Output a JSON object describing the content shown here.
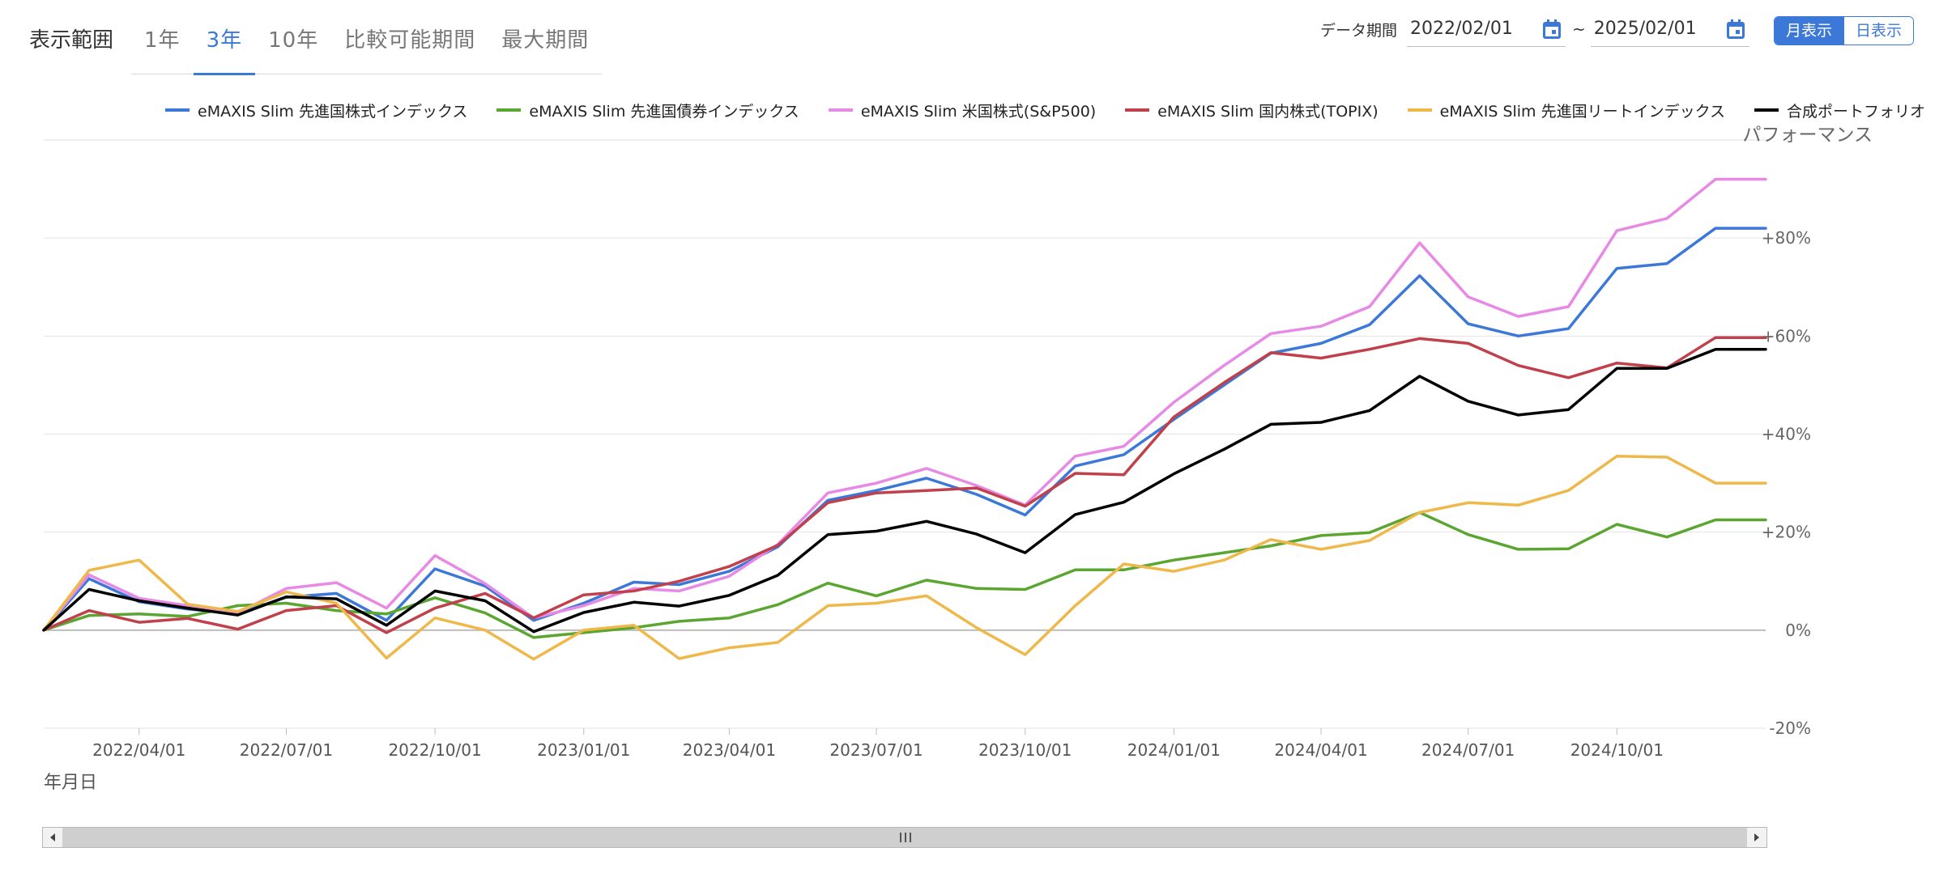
{
  "range": {
    "label": "表示範囲",
    "tabs": [
      {
        "label": "1年",
        "active": false
      },
      {
        "label": "3年",
        "active": true
      },
      {
        "label": "10年",
        "active": false
      },
      {
        "label": "比較可能期間",
        "active": false
      },
      {
        "label": "最大期間",
        "active": false
      }
    ]
  },
  "period": {
    "label": "データ期間",
    "start": "2022/02/01",
    "separator": "~",
    "end": "2025/02/01",
    "icon": "calendar-icon"
  },
  "view_toggle": {
    "monthly": "月表示",
    "daily": "日表示",
    "selected": "monthly"
  },
  "colors": {
    "accent": "#3c78d8"
  },
  "chart_data": {
    "type": "line",
    "ylabel": "パフォーマンス",
    "xlabel": "年月日",
    "ylim": [
      -20,
      100
    ],
    "y_ticks": [
      {
        "value": 80,
        "label": "+80%"
      },
      {
        "value": 60,
        "label": "+60%"
      },
      {
        "value": 40,
        "label": "+40%"
      },
      {
        "value": 20,
        "label": "+20%"
      },
      {
        "value": 0,
        "label": "0%"
      },
      {
        "value": -20,
        "label": "-20%"
      }
    ],
    "x": [
      "2022/02/01",
      "2022/03/01",
      "2022/04/01",
      "2022/05/01",
      "2022/06/01",
      "2022/07/01",
      "2022/08/01",
      "2022/09/01",
      "2022/10/01",
      "2022/11/01",
      "2022/12/01",
      "2023/01/01",
      "2023/02/01",
      "2023/03/01",
      "2023/04/01",
      "2023/05/01",
      "2023/06/01",
      "2023/07/01",
      "2023/08/01",
      "2023/09/01",
      "2023/10/01",
      "2023/11/01",
      "2023/12/01",
      "2024/01/01",
      "2024/02/01",
      "2024/03/01",
      "2024/04/01",
      "2024/05/01",
      "2024/06/01",
      "2024/07/01",
      "2024/08/01",
      "2024/09/01",
      "2024/10/01",
      "2024/11/01",
      "2024/12/01",
      "2025/01/01"
    ],
    "x_tick_labels": [
      "2022/04/01",
      "2022/07/01",
      "2022/10/01",
      "2023/01/01",
      "2023/04/01",
      "2023/07/01",
      "2023/10/01",
      "2024/01/01",
      "2024/04/01",
      "2024/07/01",
      "2024/10/01"
    ],
    "zero_line": true,
    "legend_position": "top",
    "series": [
      {
        "name": "eMAXIS Slim 先進国株式インデックス",
        "color": "#3c78d8",
        "values": [
          0,
          10.5,
          5.8,
          4.3,
          3.4,
          6.7,
          7.5,
          2.0,
          12.5,
          9.0,
          2.0,
          5.5,
          9.8,
          9.3,
          12.0,
          17.0,
          26.5,
          28.5,
          31.0,
          27.7,
          23.5,
          33.5,
          35.8,
          43.0,
          50.0,
          56.5,
          58.5,
          62.3,
          72.3,
          62.5,
          60.0,
          61.5,
          73.8,
          74.8,
          82.0,
          82.0
        ]
      },
      {
        "name": "eMAXIS Slim 先進国債券インデックス",
        "color": "#5ba531",
        "values": [
          0,
          3.0,
          3.3,
          2.8,
          5.0,
          5.5,
          4.0,
          3.3,
          6.6,
          3.5,
          -1.5,
          -0.5,
          0.5,
          1.8,
          2.5,
          5.2,
          9.6,
          7.0,
          10.2,
          8.5,
          8.3,
          12.3,
          12.3,
          14.3,
          15.8,
          17.2,
          19.3,
          19.9,
          24.0,
          19.5,
          16.5,
          16.6,
          21.6,
          19.0,
          22.5,
          22.5
        ]
      },
      {
        "name": "eMAXIS Slim 米国株式(S&P500)",
        "color": "#e78ae6",
        "values": [
          0,
          11.3,
          6.5,
          5.0,
          3.5,
          8.5,
          9.7,
          4.5,
          15.2,
          9.5,
          2.5,
          5.0,
          8.5,
          8.0,
          11.0,
          17.5,
          28.0,
          30.0,
          33.0,
          29.5,
          25.5,
          35.5,
          37.5,
          46.5,
          54.0,
          60.5,
          62.0,
          66.0,
          79.0,
          68.0,
          64.0,
          66.0,
          81.5,
          84.0,
          92.0,
          92.0
        ]
      },
      {
        "name": "eMAXIS Slim 国内株式(TOPIX)",
        "color": "#c0404c",
        "values": [
          0,
          4.0,
          1.6,
          2.4,
          0.2,
          4.0,
          5.0,
          -0.5,
          4.5,
          7.5,
          2.5,
          7.2,
          8.0,
          10.0,
          13.0,
          17.3,
          26.0,
          28.0,
          28.5,
          29.0,
          25.3,
          32.0,
          31.7,
          43.5,
          50.5,
          56.6,
          55.5,
          57.3,
          59.5,
          58.5,
          54.0,
          51.5,
          54.5,
          53.5,
          59.7,
          59.7
        ]
      },
      {
        "name": "eMAXIS Slim 先進国リートインデックス",
        "color": "#efb84a",
        "values": [
          0,
          12.2,
          14.3,
          5.3,
          3.8,
          7.8,
          5.5,
          -5.7,
          2.5,
          0.0,
          -5.9,
          0.0,
          1.0,
          -5.8,
          -3.6,
          -2.5,
          5.0,
          5.5,
          7.0,
          0.5,
          -5.0,
          5.0,
          13.5,
          12.0,
          14.3,
          18.5,
          16.5,
          18.3,
          24.0,
          26.0,
          25.5,
          28.5,
          35.5,
          35.3,
          30.0,
          30.0
        ]
      },
      {
        "name": "合成ポートフォリオ",
        "color": "#000000",
        "values": [
          0,
          8.3,
          6.0,
          4.5,
          3.1,
          6.8,
          6.4,
          1.0,
          8.0,
          6.0,
          -0.3,
          3.6,
          5.7,
          4.9,
          7.1,
          11.2,
          19.5,
          20.2,
          22.2,
          19.6,
          15.8,
          23.6,
          26.1,
          31.9,
          36.9,
          42.0,
          42.4,
          44.8,
          51.8,
          46.7,
          43.9,
          45.0,
          53.4,
          53.4,
          57.3,
          57.3
        ]
      }
    ]
  }
}
